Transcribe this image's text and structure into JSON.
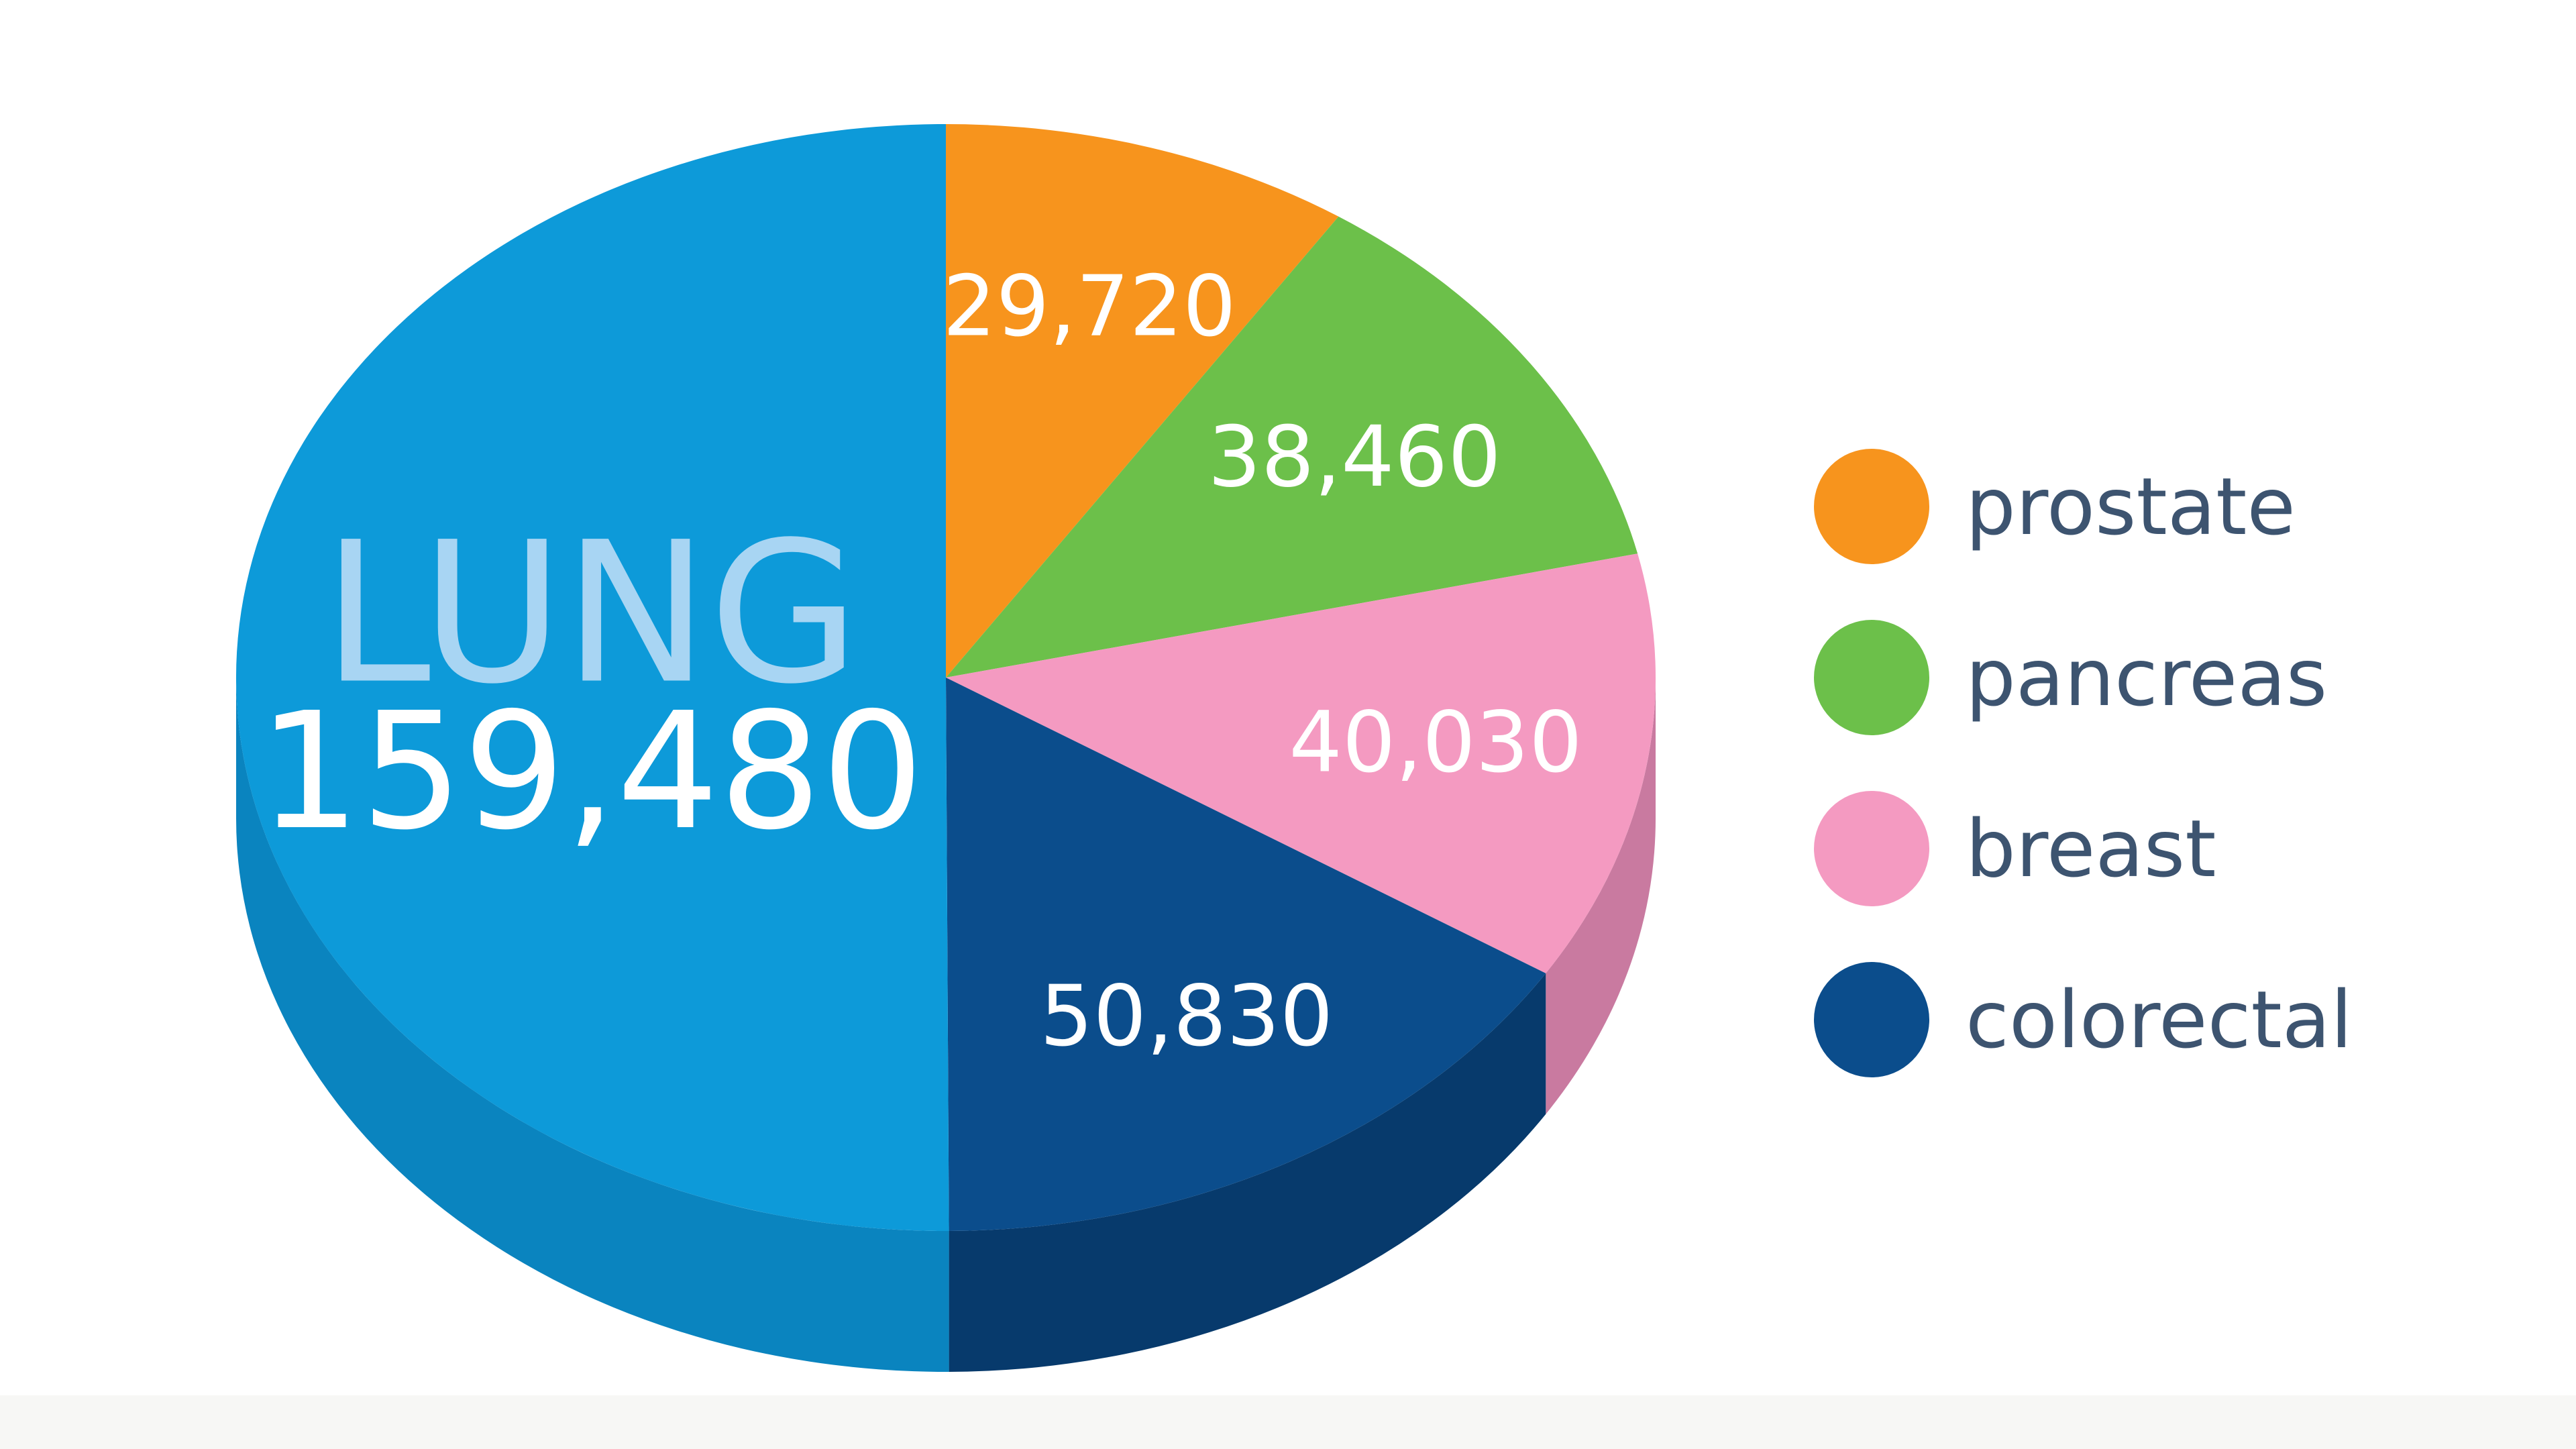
{
  "chart_data": {
    "type": "pie",
    "categories": [
      "LUNG",
      "prostate",
      "pancreas",
      "breast",
      "colorectal"
    ],
    "values": [
      159480,
      29720,
      38460,
      40030,
      50830
    ],
    "value_labels": [
      "159,480",
      "29,720",
      "38,460",
      "40,030",
      "50,830"
    ],
    "colors": [
      "#0d9ad9",
      "#f7941d",
      "#6cc04a",
      "#f49ac1",
      "#0b4d8c"
    ],
    "side_colors": [
      "#0a84bf",
      "#d97d12",
      "#58a63b",
      "#c97aa0",
      "#073a6c"
    ],
    "legend": "right"
  }
}
